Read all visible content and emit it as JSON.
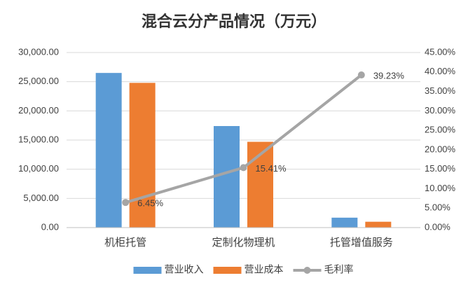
{
  "chart_data": {
    "type": "bar",
    "title": "混合云分产品情况（万元）",
    "categories": [
      "机柜托管",
      "定制化物理机",
      "托管增值服务"
    ],
    "series": [
      {
        "name": "营业收入",
        "color": "#5b9bd5",
        "values": [
          26500,
          17400,
          1700
        ]
      },
      {
        "name": "营业成本",
        "color": "#ed7d31",
        "values": [
          24800,
          14700,
          1000
        ]
      },
      {
        "name": "毛利率",
        "color": "#a5a5a5",
        "type": "line",
        "axis": "y2",
        "values": [
          6.45,
          15.41,
          39.23
        ],
        "value_labels": [
          "6.45%",
          "15.41%",
          "39.23%"
        ]
      }
    ],
    "ylim": [
      0,
      30000
    ],
    "yticks": [
      {
        "value": 0,
        "label": "0.00"
      },
      {
        "value": 5000,
        "label": "5,000.00"
      },
      {
        "value": 10000,
        "label": "10,000.00"
      },
      {
        "value": 15000,
        "label": "15,000.00"
      },
      {
        "value": 20000,
        "label": "20,000.00"
      },
      {
        "value": 25000,
        "label": "25,000.00"
      },
      {
        "value": 30000,
        "label": "30,000.00"
      }
    ],
    "y2lim": [
      0,
      45
    ],
    "y2ticks": [
      {
        "value": 0,
        "label": "0.00%"
      },
      {
        "value": 5,
        "label": "5.00%"
      },
      {
        "value": 10,
        "label": "10.00%"
      },
      {
        "value": 15,
        "label": "15.00%"
      },
      {
        "value": 20,
        "label": "20.00%"
      },
      {
        "value": 25,
        "label": "25.00%"
      },
      {
        "value": 30,
        "label": "30.00%"
      },
      {
        "value": 35,
        "label": "35.00%"
      },
      {
        "value": 40,
        "label": "40.00%"
      },
      {
        "value": 45,
        "label": "45.00%"
      }
    ],
    "grid": true,
    "legend": "bottom"
  }
}
